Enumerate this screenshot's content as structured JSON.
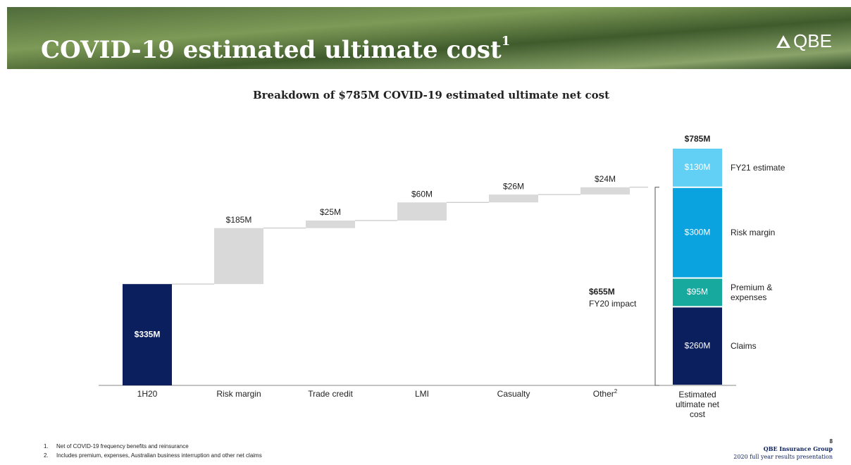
{
  "header": {
    "title": "COVID-19 estimated ultimate cost",
    "title_sup": "1",
    "logo": "QBE"
  },
  "chart_data": {
    "type": "waterfall",
    "title": "Breakdown of $785M COVID-19 estimated ultimate net cost",
    "categories": [
      "1H20",
      "Risk margin",
      "Trade credit",
      "LMI",
      "Casualty",
      "Other"
    ],
    "category_notes": [
      null,
      null,
      null,
      null,
      null,
      "2"
    ],
    "values": [
      335,
      185,
      25,
      60,
      26,
      24
    ],
    "value_labels": [
      "$335M",
      "$185M",
      "$25M",
      "$60M",
      "$26M",
      "$24M"
    ],
    "start_color": "#0b1f5e",
    "step_color": "#d9d9d9",
    "total": {
      "category": "Estimated ultimate net cost",
      "value": 785,
      "value_label": "$785M",
      "stack": [
        {
          "name": "Claims",
          "color": "#0b1f5e",
          "value": 260,
          "value_label": "$260M"
        },
        {
          "name": "Premium & expenses",
          "color": "#17a89e",
          "value": 95,
          "value_label": "$95M"
        },
        {
          "name": "Risk margin",
          "color": "#0aa2df",
          "value": 300,
          "value_label": "$300M"
        },
        {
          "name": "FY21 estimate",
          "color": "#62d0f5",
          "value": 130,
          "value_label": "$130M"
        }
      ]
    },
    "bracket": {
      "value": 655,
      "value_label": "$655M",
      "label": "FY20 impact"
    }
  },
  "footnotes": [
    {
      "number": "1.",
      "text": "Net of COVID-19 frequency benefits and reinsurance"
    },
    {
      "number": "2.",
      "text": "Includes premium, expenses, Australian business interruption and other net claims"
    }
  ],
  "footer": {
    "page": "8",
    "company": "QBE Insurance Group",
    "subtitle": "2020 full year results presentation"
  }
}
